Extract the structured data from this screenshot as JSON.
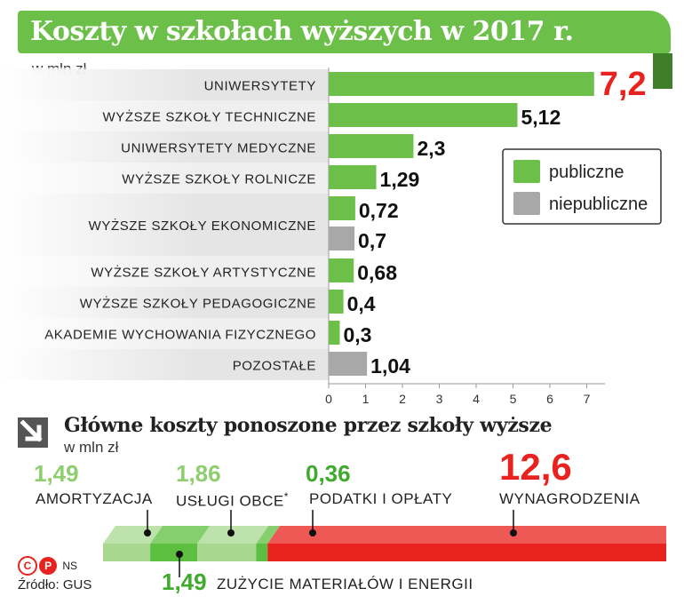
{
  "title": "Koszty w szkołach wyższych w 2017 r.",
  "chart_data": [
    {
      "type": "bar",
      "orientation": "horizontal",
      "unit": "w mln zł",
      "xlim": [
        0,
        7
      ],
      "ticks": [
        "0",
        "1",
        "2",
        "3",
        "4",
        "5",
        "6",
        "7"
      ],
      "legend": {
        "placement": "right",
        "items": [
          {
            "name": "publiczne",
            "color": "#6cc04a"
          },
          {
            "name": "niepubliczne",
            "color": "#a8a8a8"
          }
        ]
      },
      "categories": [
        {
          "label": "UNIWERSYTETY",
          "bars": [
            {
              "series": "publiczne",
              "value": 7.2,
              "label": "7,2",
              "highlight": true
            }
          ]
        },
        {
          "label": "WYŻSZE SZKOŁY TECHNICZNE",
          "bars": [
            {
              "series": "publiczne",
              "value": 5.12,
              "label": "5,12"
            }
          ]
        },
        {
          "label": "UNIWERSYTETY MEDYCZNE",
          "bars": [
            {
              "series": "publiczne",
              "value": 2.3,
              "label": "2,3"
            }
          ]
        },
        {
          "label": "WYŻSZE SZKOŁY ROLNICZE",
          "bars": [
            {
              "series": "publiczne",
              "value": 1.29,
              "label": "1,29"
            }
          ]
        },
        {
          "label": "WYŻSZE SZKOŁY EKONOMICZNE",
          "bars": [
            {
              "series": "publiczne",
              "value": 0.72,
              "label": "0,72"
            },
            {
              "series": "niepubliczne",
              "value": 0.7,
              "label": "0,7"
            }
          ]
        },
        {
          "label": "WYŻSZE SZKOŁY ARTYSTYCZNE",
          "bars": [
            {
              "series": "publiczne",
              "value": 0.68,
              "label": "0,68"
            }
          ]
        },
        {
          "label": "WYŻSZE SZKOŁY PEDAGOGICZNE",
          "bars": [
            {
              "series": "publiczne",
              "value": 0.4,
              "label": "0,4"
            }
          ]
        },
        {
          "label": "AKADEMIE WYCHOWANIA FIZYCZNEGO",
          "bars": [
            {
              "series": "publiczne",
              "value": 0.3,
              "label": "0,3"
            }
          ]
        },
        {
          "label": "POZOSTAŁE",
          "bars": [
            {
              "series": "niepubliczne",
              "value": 1.04,
              "label": "1,04"
            }
          ]
        }
      ]
    },
    {
      "type": "bar",
      "orientation": "stacked-horizontal",
      "title": "Główne koszty ponoszone przez szkoły wyższe",
      "unit": "w mln zł",
      "segments": [
        {
          "label": "AMORTYZACJA",
          "value": 1.49,
          "value_label": "1,49",
          "color": "#a8d890"
        },
        {
          "label": "ZUŻYCIE MATERIAŁÓW I ENERGII",
          "value": 1.49,
          "value_label": "1,49",
          "color": "#5cbf3f"
        },
        {
          "label": "USŁUGI OBCE",
          "note": "*",
          "value": 1.86,
          "value_label": "1,86",
          "color": "#a8d890"
        },
        {
          "label": "PODATKI I OPŁATY",
          "value": 0.36,
          "value_label": "0,36",
          "color": "#5cbf3f"
        },
        {
          "label": "WYNAGRODZENIA",
          "value": 12.6,
          "value_label": "12,6",
          "color": "#e8221e",
          "highlight": true
        }
      ]
    }
  ],
  "footer": {
    "copyright": "NS",
    "source": "Źródło: GUS"
  },
  "colors": {
    "green": "#6cc04a",
    "gray": "#a8a8a8",
    "red": "#e8221e",
    "light_green_text": "#8fce6f",
    "dark_green_text": "#3faa2b"
  }
}
